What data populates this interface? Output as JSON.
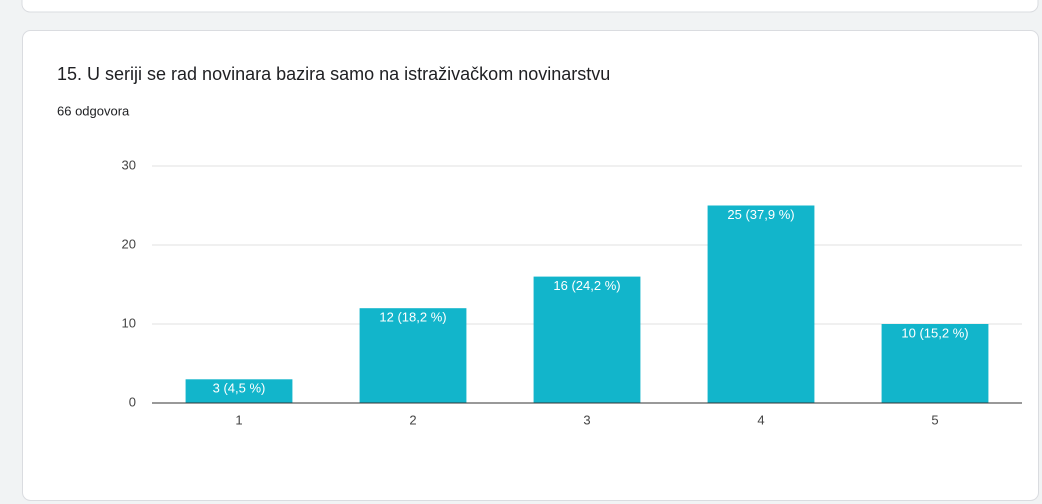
{
  "chart_data": {
    "type": "bar",
    "title": "15. U seriji se rad novinara bazira samo na istraživačkom novinarstvu",
    "subtitle": "66 odgovora",
    "categories": [
      "1",
      "2",
      "3",
      "4",
      "5"
    ],
    "values": [
      3,
      12,
      16,
      25,
      10
    ],
    "value_labels": [
      "3 (4,5 %)",
      "12 (18,2 %)",
      "16 (24,2 %)",
      "25 (37,9 %)",
      "10 (15,2 %)"
    ],
    "color": "#12b5cb",
    "ylim": [
      0,
      30
    ],
    "yticks": [
      0,
      10,
      20,
      30
    ],
    "grid": true
  }
}
